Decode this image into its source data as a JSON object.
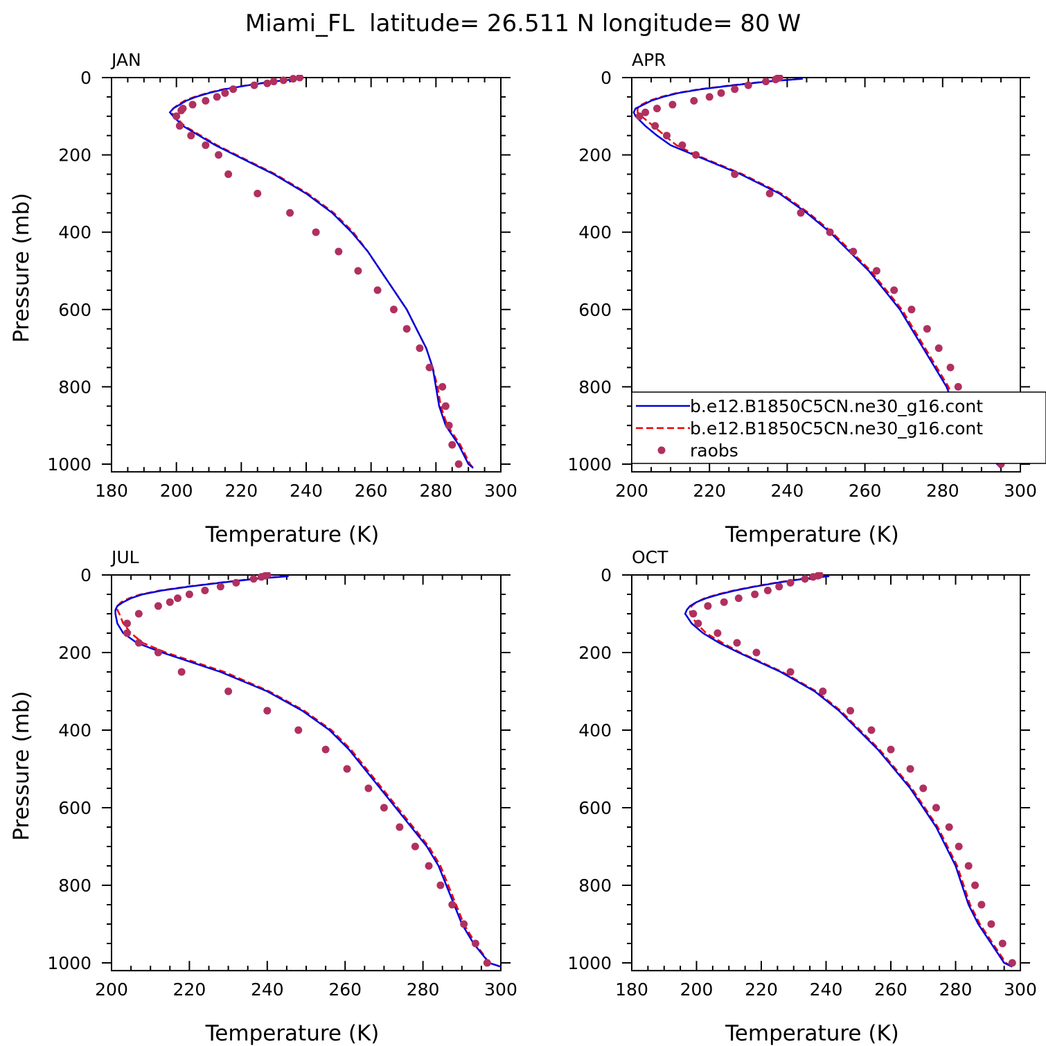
{
  "figure": {
    "title": "Miami_FL  latitude= 26.511 N longitude= 80 W"
  },
  "colors": {
    "model1": "#0000dd",
    "model2": "#ee0000",
    "raobs": "#b03060",
    "axes": "#000000"
  },
  "legend": {
    "entries": [
      {
        "label": "b.e12.B1850C5CN.ne30_g16.cont",
        "style": "solid",
        "color": "#0000dd"
      },
      {
        "label": "b.e12.B1850C5CN.ne30_g16.cont",
        "style": "dashed",
        "color": "#ee0000"
      },
      {
        "label": "raobs",
        "style": "marker",
        "color": "#b03060"
      }
    ]
  },
  "chart_data": [
    {
      "type": "line",
      "panel": "JAN",
      "xlabel": "Temperature (K)",
      "ylabel": "Pressure (mb)",
      "xlim": [
        180,
        300
      ],
      "ylim": [
        1000,
        0
      ],
      "xticks": [
        180,
        200,
        220,
        240,
        260,
        280,
        300
      ],
      "yticks": [
        0,
        200,
        400,
        600,
        800,
        1000
      ],
      "model1": {
        "pressure": [
          3,
          10,
          20,
          30,
          40,
          50,
          60,
          70,
          80,
          90,
          100,
          125,
          150,
          175,
          200,
          250,
          300,
          350,
          400,
          450,
          500,
          550,
          600,
          650,
          700,
          750,
          800,
          850,
          900,
          950,
          1000,
          1010
        ],
        "temperature": [
          238,
          230,
          222,
          215,
          210,
          206,
          203,
          201,
          199,
          198,
          199,
          202,
          207,
          212,
          218,
          230,
          240,
          248,
          254,
          259,
          263,
          267,
          271,
          274,
          277,
          279,
          280,
          281,
          283,
          287,
          290,
          291.5
        ]
      },
      "model2": {
        "pressure": [
          3,
          10,
          20,
          30,
          40,
          50,
          60,
          70,
          80,
          90,
          100,
          125,
          150,
          175,
          200,
          250,
          300,
          350,
          400,
          450,
          500,
          550,
          600,
          650,
          700,
          750,
          800,
          850,
          900,
          950,
          1000,
          1010
        ],
        "temperature": [
          237.5,
          229.5,
          221.5,
          214.5,
          209.5,
          205.5,
          202.5,
          200.5,
          199,
          198.5,
          199.5,
          202.5,
          207.5,
          212.5,
          218.5,
          230.5,
          240.5,
          248.5,
          254.5,
          259,
          263,
          267,
          271,
          274,
          277,
          279,
          280.5,
          281.5,
          283.5,
          287.5,
          290.5,
          291.5
        ]
      },
      "raobs": {
        "pressure": [
          0,
          3,
          7,
          10,
          15,
          20,
          30,
          40,
          50,
          60,
          70,
          80,
          85,
          100,
          125,
          150,
          175,
          200,
          250,
          300,
          350,
          400,
          450,
          500,
          550,
          600,
          650,
          700,
          750,
          800,
          850,
          900,
          950,
          1000
        ],
        "temperature": [
          238,
          236,
          233,
          230,
          228,
          224,
          217.5,
          215,
          212.5,
          209,
          205,
          202,
          201.5,
          200,
          201,
          204.5,
          209,
          213,
          216,
          225,
          235,
          243,
          250,
          256,
          262,
          267,
          271,
          275,
          278,
          282,
          283,
          284,
          285,
          287
        ]
      }
    },
    {
      "type": "line",
      "panel": "APR",
      "xlabel": "Temperature (K)",
      "ylabel": "",
      "xlim": [
        200,
        300
      ],
      "ylim": [
        1000,
        0
      ],
      "xticks": [
        200,
        220,
        240,
        260,
        280,
        300
      ],
      "yticks": [
        0,
        200,
        400,
        600,
        800,
        1000
      ],
      "model1": {
        "pressure": [
          3,
          10,
          20,
          30,
          40,
          50,
          60,
          70,
          80,
          90,
          100,
          125,
          150,
          175,
          200,
          250,
          300,
          350,
          400,
          450,
          500,
          550,
          600,
          650,
          700,
          750,
          800,
          850,
          900,
          950,
          1000,
          1010
        ],
        "temperature": [
          244,
          235,
          226,
          218,
          212,
          208,
          205,
          203,
          201,
          200.5,
          201,
          203.5,
          206.5,
          210,
          216,
          228,
          238,
          245,
          251,
          256,
          261,
          265,
          269,
          272,
          275,
          278,
          281,
          283,
          287,
          291,
          294,
          295
        ]
      },
      "model2": {
        "pressure": [
          3,
          10,
          20,
          30,
          40,
          50,
          60,
          70,
          80,
          90,
          100,
          125,
          150,
          175,
          200,
          250,
          300,
          350,
          400,
          450,
          500,
          550,
          600,
          650,
          700,
          750,
          800,
          850,
          900,
          950,
          1000,
          1010
        ],
        "temperature": [
          243.5,
          234.5,
          225.5,
          217.5,
          211.5,
          207.5,
          204.5,
          202.5,
          201.5,
          201.5,
          202.5,
          205.5,
          208.5,
          211.5,
          216.5,
          228.5,
          238.5,
          245.5,
          251.5,
          256.5,
          261.5,
          265.5,
          269.5,
          272.5,
          275.5,
          278.5,
          281.5,
          283.5,
          287.5,
          291.5,
          294.5,
          295
        ]
      },
      "raobs": {
        "pressure": [
          0,
          2,
          5,
          10,
          20,
          30,
          40,
          50,
          60,
          70,
          80,
          90,
          100,
          125,
          150,
          175,
          200,
          250,
          300,
          350,
          400,
          450,
          500,
          550,
          600,
          650,
          700,
          750,
          800,
          850,
          900,
          950,
          1000
        ],
        "temperature": [
          238,
          237.5,
          237,
          234.5,
          230,
          226.5,
          223,
          220,
          216,
          210.5,
          206.5,
          203.5,
          202,
          206,
          209,
          213,
          216.5,
          226.5,
          235.5,
          243.5,
          251,
          257,
          263,
          267.5,
          272,
          276,
          279,
          282,
          284,
          286,
          289,
          291.5,
          295
        ]
      }
    },
    {
      "type": "line",
      "panel": "JUL",
      "xlabel": "Temperature (K)",
      "ylabel": "Pressure (mb)",
      "xlim": [
        200,
        300
      ],
      "ylim": [
        1000,
        0
      ],
      "xticks": [
        200,
        220,
        240,
        260,
        280,
        300
      ],
      "yticks": [
        0,
        200,
        400,
        600,
        800,
        1000
      ],
      "model1": {
        "pressure": [
          3,
          10,
          20,
          30,
          40,
          50,
          60,
          70,
          80,
          90,
          100,
          125,
          150,
          175,
          200,
          250,
          300,
          350,
          400,
          450,
          500,
          550,
          600,
          650,
          700,
          750,
          800,
          850,
          900,
          950,
          1000,
          1010
        ],
        "temperature": [
          245.5,
          237,
          228,
          220,
          213,
          208,
          205,
          203,
          201.5,
          201,
          201,
          201.5,
          203,
          206.5,
          213,
          228,
          240,
          249,
          256,
          261,
          265,
          269,
          273,
          277,
          281,
          284,
          286,
          288,
          290,
          293,
          297,
          300
        ]
      },
      "model2": {
        "pressure": [
          3,
          10,
          20,
          30,
          40,
          50,
          60,
          70,
          80,
          90,
          100,
          125,
          150,
          175,
          200,
          250,
          300,
          350,
          400,
          450,
          500,
          550,
          600,
          650,
          700,
          750,
          800,
          850,
          900,
          950,
          1000,
          1010
        ],
        "temperature": [
          245,
          236.5,
          227.5,
          219.5,
          212.5,
          207.5,
          204.5,
          202.5,
          201.5,
          201.5,
          202,
          203,
          205,
          208,
          214,
          229,
          240.5,
          249.5,
          256.5,
          261.5,
          265.5,
          269.5,
          273.5,
          277.5,
          281.5,
          284.5,
          286.5,
          288.5,
          290.5,
          293.5,
          297,
          300
        ]
      },
      "raobs": {
        "pressure": [
          0,
          2,
          5,
          10,
          20,
          30,
          40,
          50,
          60,
          70,
          80,
          100,
          125,
          150,
          175,
          200,
          250,
          300,
          350,
          400,
          450,
          500,
          550,
          600,
          650,
          700,
          750,
          800,
          850,
          900,
          950,
          1000
        ],
        "temperature": [
          240,
          239.5,
          238.5,
          236.5,
          232,
          228,
          224,
          220,
          217,
          215,
          212,
          207,
          204,
          204,
          207,
          212,
          218,
          230,
          240,
          248,
          255,
          260.5,
          266,
          270,
          274,
          278,
          281.5,
          284.5,
          287.5,
          290.5,
          293.5,
          296.5
        ]
      }
    },
    {
      "type": "line",
      "panel": "OCT",
      "xlabel": "Temperature (K)",
      "ylabel": "",
      "xlim": [
        180,
        300
      ],
      "ylim": [
        1000,
        0
      ],
      "xticks": [
        180,
        200,
        220,
        240,
        260,
        280,
        300
      ],
      "yticks": [
        0,
        200,
        400,
        600,
        800,
        1000
      ],
      "model1": {
        "pressure": [
          3,
          10,
          20,
          30,
          40,
          50,
          60,
          70,
          80,
          90,
          100,
          125,
          150,
          175,
          200,
          250,
          300,
          350,
          400,
          450,
          500,
          550,
          600,
          650,
          700,
          750,
          800,
          850,
          900,
          950,
          1000,
          1010
        ],
        "temperature": [
          241,
          233,
          225,
          218,
          212,
          207,
          203,
          200,
          198,
          197,
          196.5,
          198.5,
          202,
          207,
          213,
          226,
          236.5,
          244,
          250,
          256,
          261,
          266,
          270,
          274,
          277,
          280,
          282,
          284,
          287,
          291,
          295,
          297.5
        ]
      },
      "model2": {
        "pressure": [
          3,
          10,
          20,
          30,
          40,
          50,
          60,
          70,
          80,
          90,
          100,
          125,
          150,
          175,
          200,
          250,
          300,
          350,
          400,
          450,
          500,
          550,
          600,
          650,
          700,
          750,
          800,
          850,
          900,
          950,
          1000,
          1010
        ],
        "temperature": [
          240.5,
          232.5,
          224.5,
          217.5,
          211.5,
          206.5,
          202.5,
          200,
          198.5,
          198,
          198,
          200,
          203,
          208,
          213.5,
          226.5,
          237,
          244.5,
          250.5,
          256.5,
          261.5,
          266.5,
          270.5,
          274.5,
          277.5,
          280.5,
          282.5,
          284.5,
          287.5,
          291.5,
          295.5,
          297.5
        ]
      },
      "raobs": {
        "pressure": [
          0,
          2,
          5,
          10,
          20,
          30,
          40,
          50,
          60,
          70,
          80,
          100,
          125,
          150,
          175,
          200,
          250,
          300,
          350,
          400,
          450,
          500,
          550,
          600,
          650,
          700,
          750,
          800,
          850,
          900,
          950,
          1000
        ],
        "temperature": [
          238,
          237.5,
          236,
          233.5,
          229,
          225.5,
          222,
          218,
          213,
          208.5,
          203.5,
          199,
          200.5,
          206.5,
          212.5,
          218.5,
          229,
          239,
          247.5,
          254,
          260,
          266,
          270,
          274,
          278,
          281,
          284,
          286,
          288,
          291,
          294.5,
          297.5
        ]
      }
    }
  ]
}
